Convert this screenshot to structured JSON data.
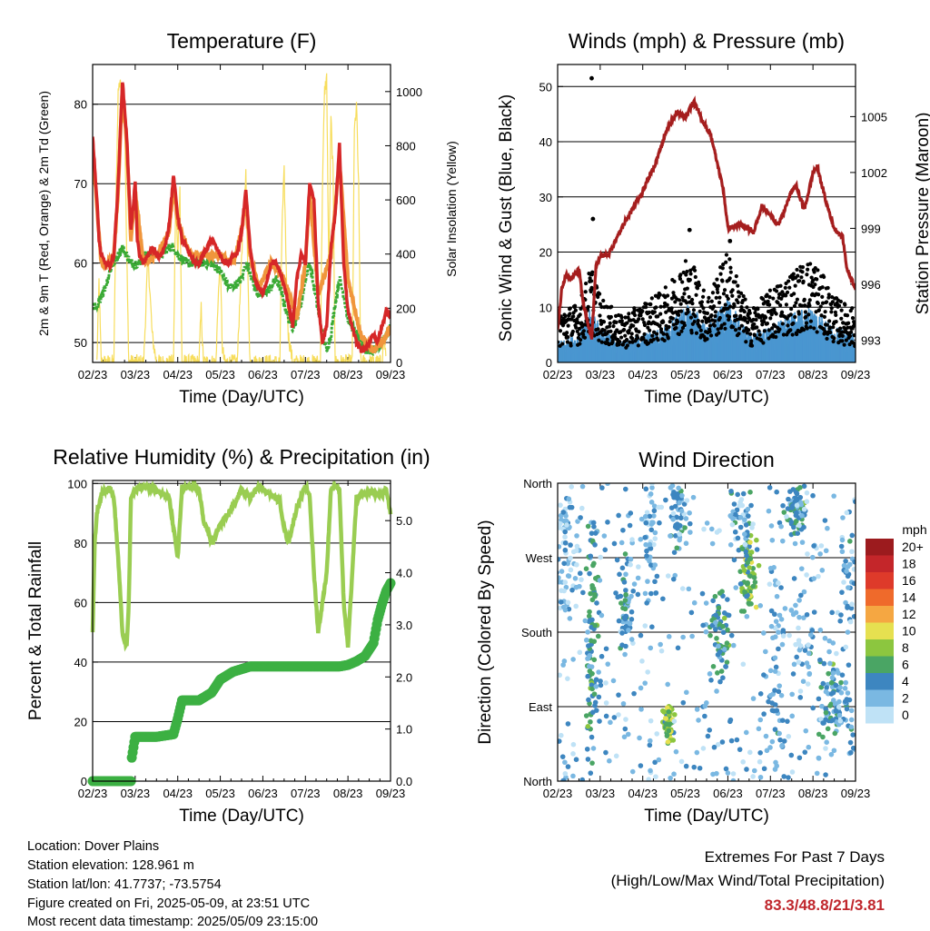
{
  "info": {
    "location": "Location: Dover Plains",
    "elevation": "Station elevation: 128.961 m",
    "latlon": "Station lat/lon: 41.7737; -73.5754",
    "created": "Figure created on Fri, 2025-05-09, at 23:51 UTC",
    "recent": "Most recent data timestamp: 2025/05/09 23:15:00"
  },
  "extremes": {
    "title": "Extremes For Past 7 Days",
    "subtitle": "(High/Low/Max Wind/Total Precipitation)",
    "values": "83.3/48.8/21/3.81",
    "value_color": "#c0272d"
  },
  "colors": {
    "temp2m": "#d62728",
    "temp9m": "#f0963c",
    "dewpoint": "#3aaa35",
    "solar": "#f7dd5c",
    "wind": "#4a96d0",
    "gust": "#000000",
    "pressure": "#a51e1e",
    "rh": "#9acd52",
    "precip": "#3cb043"
  },
  "chart_data": [
    {
      "id": "temperature",
      "type": "line",
      "title": "Temperature (F)",
      "xlabel": "Time (Day/UTC)",
      "ylabel": "2m & 9m T (Red, Orange) & 2m Td (Green)",
      "ylabel_right": "Solar Insolation (Yellow)",
      "xticks": [
        "02/23",
        "03/23",
        "04/23",
        "05/23",
        "06/23",
        "07/23",
        "08/23",
        "09/23"
      ],
      "xlim": [
        0,
        7
      ],
      "ylim": [
        47.5,
        85
      ],
      "yticks": [
        50,
        60,
        70,
        80
      ],
      "ylim_right": [
        0,
        1100
      ],
      "yticks_right": [
        0,
        200,
        400,
        600,
        800,
        1000
      ],
      "grid": true,
      "series": [
        {
          "key": "temp2m",
          "x": [
            0,
            0.05,
            0.1,
            0.15,
            0.2,
            0.3,
            0.4,
            0.5,
            0.6,
            0.7,
            0.8,
            0.9,
            1.0,
            1.05,
            1.1,
            1.2,
            1.3,
            1.4,
            1.5,
            1.6,
            1.7,
            1.8,
            1.9,
            2.0,
            2.1,
            2.2,
            2.3,
            2.4,
            2.5,
            2.6,
            2.7,
            2.8,
            2.9,
            3.0,
            3.1,
            3.2,
            3.3,
            3.4,
            3.5,
            3.6,
            3.7,
            3.8,
            3.9,
            4.0,
            4.1,
            4.2,
            4.3,
            4.4,
            4.5,
            4.6,
            4.7,
            4.8,
            4.9,
            5.0,
            5.1,
            5.2,
            5.3,
            5.4,
            5.5,
            5.6,
            5.7,
            5.8,
            5.9,
            6.0,
            6.1,
            6.2,
            6.3,
            6.4,
            6.5,
            6.6,
            6.7,
            6.8,
            6.9,
            7.0
          ],
          "y": [
            76,
            72,
            68,
            63,
            61,
            60,
            59.5,
            61,
            70,
            83,
            76,
            64,
            70,
            63,
            61,
            60,
            61,
            62,
            61,
            61,
            62,
            65,
            71,
            66,
            63,
            62,
            61,
            60,
            60,
            61,
            62,
            63,
            62,
            61,
            60,
            60,
            61,
            61,
            64,
            69,
            62,
            58,
            57,
            56,
            58,
            60,
            60,
            59,
            57,
            55,
            52,
            58,
            61,
            60,
            70,
            68,
            55,
            50,
            52,
            62,
            66,
            75,
            60,
            54,
            52,
            50,
            49,
            49,
            50,
            51,
            50,
            52,
            54,
            53
          ]
        },
        {
          "key": "temp9m",
          "x": [
            0,
            0.1,
            0.2,
            0.3,
            0.5,
            0.6,
            0.7,
            0.8,
            0.9,
            1.0,
            1.2,
            1.5,
            1.8,
            1.9,
            2.0,
            2.3,
            2.6,
            3.0,
            3.3,
            3.5,
            3.6,
            3.7,
            3.9,
            4.2,
            4.5,
            4.8,
            5.0,
            5.1,
            5.3,
            5.6,
            5.8,
            6.0,
            6.3,
            6.6,
            6.8,
            7.0
          ],
          "y": [
            75,
            67,
            60,
            59.5,
            61,
            69,
            82,
            75,
            63,
            69,
            60,
            61,
            64,
            70,
            65,
            61,
            61,
            61,
            60,
            64,
            68,
            61,
            57,
            60,
            58,
            53,
            60,
            69,
            56,
            61,
            73,
            58,
            51,
            49,
            50,
            52
          ]
        },
        {
          "key": "dewpoint",
          "x": [
            0,
            0.1,
            0.2,
            0.3,
            0.4,
            0.5,
            0.6,
            0.7,
            0.8,
            0.9,
            1.0,
            1.1,
            1.2,
            1.4,
            1.6,
            1.8,
            1.9,
            2.0,
            2.2,
            2.4,
            2.6,
            2.8,
            3.0,
            3.1,
            3.2,
            3.3,
            3.5,
            3.6,
            3.7,
            3.8,
            3.9,
            4.0,
            4.2,
            4.3,
            4.4,
            4.5,
            4.6,
            4.7,
            4.8,
            4.9,
            5.0,
            5.1,
            5.2,
            5.3,
            5.4,
            5.5,
            5.6,
            5.7,
            5.8,
            5.9,
            6.0,
            6.2,
            6.4,
            6.6,
            6.8,
            7.0
          ],
          "y": [
            55,
            54,
            56,
            57,
            59,
            60,
            61,
            62,
            61,
            60,
            60,
            60,
            61,
            61,
            61,
            62,
            62,
            61,
            60,
            60,
            60,
            60,
            59,
            58,
            57,
            57,
            58,
            60,
            59,
            57,
            56,
            56,
            57,
            58,
            57,
            55,
            53,
            52,
            53,
            55,
            58,
            60,
            57,
            54,
            51,
            49,
            51,
            55,
            58,
            56,
            53,
            51,
            49,
            49,
            50,
            52
          ]
        },
        {
          "key": "solar",
          "x": [
            0.1,
            0.15,
            0.2,
            0.5,
            0.55,
            0.6,
            0.65,
            0.7,
            0.75,
            0.8,
            0.85,
            0.9,
            1.2,
            1.3,
            1.4,
            1.5,
            1.9,
            1.95,
            2.0,
            2.05,
            2.1,
            2.5,
            2.55,
            2.6,
            2.9,
            2.95,
            3.0,
            3.05,
            3.1,
            3.4,
            3.5,
            3.55,
            3.6,
            3.65,
            3.7,
            4.4,
            4.45,
            4.5,
            4.55,
            4.6,
            4.7,
            5.35,
            5.4,
            5.45,
            5.5,
            5.55,
            5.6,
            5.65,
            5.7,
            6.1,
            6.15,
            6.2,
            6.25,
            6.3,
            6.8,
            6.85,
            6.9
          ],
          "y": [
            0,
            300,
            0,
            0,
            600,
            1000,
            1050,
            900,
            950,
            400,
            0,
            0,
            0,
            400,
            100,
            0,
            0,
            600,
            400,
            650,
            0,
            0,
            200,
            0,
            0,
            250,
            350,
            50,
            0,
            0,
            400,
            550,
            700,
            300,
            0,
            0,
            500,
            700,
            350,
            100,
            0,
            0,
            650,
            1000,
            1050,
            300,
            900,
            700,
            0,
            0,
            850,
            950,
            650,
            0,
            0,
            100,
            0
          ]
        }
      ]
    },
    {
      "id": "winds",
      "type": "scatter",
      "title": "Winds (mph) & Pressure (mb)",
      "xlabel": "Time (Day/UTC)",
      "ylabel": "Sonic Wind & Gust (Blue, Black)",
      "ylabel_right": "Station Pressure (Maroon)",
      "xticks": [
        "02/23",
        "03/23",
        "04/23",
        "05/23",
        "06/23",
        "07/23",
        "08/23",
        "09/23"
      ],
      "xlim": [
        0,
        7
      ],
      "ylim": [
        0,
        54
      ],
      "yticks": [
        0,
        10,
        20,
        30,
        40,
        50
      ],
      "ylim_right": [
        991.8,
        1007.8
      ],
      "yticks_right": [
        993,
        996,
        999,
        1002,
        1005
      ],
      "grid": true,
      "gust_envelope": {
        "x": [
          0,
          0.5,
          0.8,
          1.0,
          1.5,
          2.0,
          2.5,
          3.0,
          3.2,
          3.5,
          4.0,
          4.5,
          5.0,
          5.5,
          6.0,
          6.5,
          7.0
        ],
        "y": [
          8,
          9,
          15,
          10,
          7,
          9,
          11,
          16,
          15,
          10,
          17,
          8,
          11,
          14,
          16,
          10,
          8
        ]
      },
      "wind_envelope": {
        "x": [
          0,
          0.5,
          0.8,
          1.0,
          1.5,
          2.0,
          2.5,
          3.0,
          3.2,
          3.5,
          4.0,
          4.5,
          5.0,
          5.5,
          6.0,
          6.5,
          7.0
        ],
        "y": [
          3,
          4,
          8,
          5,
          3,
          4,
          5,
          8,
          8,
          5,
          9,
          4,
          5,
          7,
          8,
          5,
          4
        ]
      },
      "gust_outliers": {
        "x": [
          0.8,
          0.83,
          3.1,
          4.05
        ],
        "y": [
          51.5,
          26,
          24,
          22
        ]
      },
      "series": [
        {
          "key": "pressure",
          "x": [
            0,
            0.1,
            0.2,
            0.3,
            0.5,
            0.6,
            0.8,
            0.9,
            1.0,
            1.2,
            1.5,
            2.0,
            2.3,
            2.6,
            2.8,
            3.0,
            3.2,
            3.4,
            3.6,
            3.9,
            4.0,
            4.3,
            4.6,
            4.8,
            5.2,
            5.5,
            5.6,
            5.8,
            6.0,
            6.1,
            6.3,
            6.5,
            6.7,
            6.8,
            7.0
          ],
          "y": [
            993.5,
            995.8,
            996.5,
            996.2,
            996.8,
            995,
            993,
            997,
            997.5,
            997.6,
            999,
            1001,
            1002.5,
            1004.5,
            1005.2,
            1005,
            1005.8,
            1004.8,
            1004,
            1001,
            999,
            999.2,
            998.8,
            1000.2,
            999.2,
            1001,
            1001.3,
            1000,
            1002,
            1002.3,
            1000.5,
            999,
            998.5,
            996.8,
            995.8
          ]
        }
      ]
    },
    {
      "id": "humidity",
      "type": "line",
      "title": "Relative Humidity (%) & Precipitation (in)",
      "xlabel": "Time (Day/UTC)",
      "ylabel": "Percent & Total Rainfall",
      "xticks": [
        "02/23",
        "03/23",
        "04/23",
        "05/23",
        "06/23",
        "07/23",
        "08/23",
        "09/23"
      ],
      "xlim": [
        0,
        7
      ],
      "ylim": [
        0,
        101
      ],
      "yticks": [
        0,
        20,
        40,
        60,
        80,
        100
      ],
      "ylim_right": [
        0,
        5.77
      ],
      "yticks_right": [
        "0.0",
        "1.0",
        "2.0",
        "3.0",
        "4.0",
        "5.0"
      ],
      "grid": true,
      "series": [
        {
          "key": "rh",
          "x": [
            0,
            0.05,
            0.1,
            0.2,
            0.3,
            0.4,
            0.5,
            0.6,
            0.7,
            0.8,
            0.85,
            0.9,
            1.0,
            1.2,
            1.5,
            1.8,
            1.9,
            2.0,
            2.1,
            2.3,
            2.5,
            2.6,
            2.8,
            3.0,
            3.2,
            3.4,
            3.5,
            3.7,
            3.9,
            4.2,
            4.4,
            4.5,
            4.6,
            4.8,
            5.0,
            5.1,
            5.2,
            5.3,
            5.5,
            5.6,
            5.7,
            5.8,
            5.9,
            6.0,
            6.2,
            6.5,
            6.8,
            6.9,
            7.0
          ],
          "y": [
            50,
            80,
            90,
            96,
            98,
            99,
            95,
            75,
            50,
            45,
            60,
            95,
            98,
            99,
            98,
            95,
            85,
            75,
            98,
            99,
            98,
            88,
            80,
            86,
            90,
            95,
            98,
            95,
            99,
            96,
            94,
            85,
            80,
            92,
            99,
            96,
            70,
            50,
            70,
            98,
            99,
            98,
            60,
            45,
            95,
            97,
            96,
            98,
            90
          ]
        },
        {
          "key": "precip",
          "x": [
            0,
            0.5,
            0.9,
            0.92,
            1.0,
            1.5,
            1.9,
            2.0,
            2.1,
            2.5,
            2.8,
            3.0,
            3.3,
            3.7,
            4.0,
            4.5,
            5.0,
            5.3,
            5.5,
            5.8,
            6.0,
            6.2,
            6.4,
            6.6,
            6.7,
            6.8,
            6.9,
            7.0
          ],
          "y": [
            0,
            0,
            0,
            0.45,
            0.85,
            0.85,
            0.9,
            1.2,
            1.55,
            1.55,
            1.7,
            1.95,
            2.1,
            2.2,
            2.2,
            2.2,
            2.2,
            2.2,
            2.2,
            2.2,
            2.23,
            2.3,
            2.4,
            2.65,
            3.1,
            3.4,
            3.65,
            3.8
          ]
        }
      ]
    },
    {
      "id": "direction",
      "type": "scatter",
      "title": "Wind Direction",
      "xlabel": "Time (Day/UTC)",
      "ylabel": "Direction (Colored By Speed)",
      "xticks": [
        "02/23",
        "03/23",
        "04/23",
        "05/23",
        "06/23",
        "07/23",
        "08/23",
        "09/23"
      ],
      "xlim": [
        0,
        7
      ],
      "ylim": [
        0,
        360
      ],
      "yticks": [
        "North",
        "East",
        "South",
        "West",
        "North"
      ],
      "grid": true,
      "colorbar": {
        "title": "mph",
        "labels": [
          "20+",
          "18",
          "16",
          "14",
          "12",
          "10",
          "8",
          "6",
          "4",
          "2",
          "0"
        ],
        "colors": [
          "#9c1b1e",
          "#c4262a",
          "#de3a2a",
          "#ef6a2b",
          "#f5a742",
          "#e6e050",
          "#8cc63f",
          "#4aa564",
          "#3d86c0",
          "#7ab8e2",
          "#bfe2f6"
        ]
      },
      "clusters": [
        {
          "x": 0.25,
          "y": 300,
          "sx": 0.2,
          "sy": 80,
          "s": 2,
          "n": 70
        },
        {
          "x": 0.85,
          "y": 200,
          "sx": 0.12,
          "sy": 120,
          "s": 5,
          "n": 60
        },
        {
          "x": 0.75,
          "y": 110,
          "sx": 0.1,
          "sy": 70,
          "s": 5,
          "n": 30
        },
        {
          "x": 1.6,
          "y": 200,
          "sx": 0.15,
          "sy": 50,
          "s": 4,
          "n": 50
        },
        {
          "x": 2.2,
          "y": 290,
          "sx": 0.1,
          "sy": 60,
          "s": 2,
          "n": 40
        },
        {
          "x": 2.6,
          "y": 70,
          "sx": 0.1,
          "sy": 20,
          "s": 8,
          "n": 60
        },
        {
          "x": 2.85,
          "y": 320,
          "sx": 0.2,
          "sy": 30,
          "s": 3,
          "n": 50
        },
        {
          "x": 3.8,
          "y": 180,
          "sx": 0.2,
          "sy": 50,
          "s": 5,
          "n": 60
        },
        {
          "x": 4.5,
          "y": 250,
          "sx": 0.15,
          "sy": 40,
          "s": 7,
          "n": 70
        },
        {
          "x": 4.3,
          "y": 320,
          "sx": 0.25,
          "sy": 40,
          "s": 3,
          "n": 40
        },
        {
          "x": 5.1,
          "y": 140,
          "sx": 0.25,
          "sy": 120,
          "s": 3,
          "n": 60
        },
        {
          "x": 5.6,
          "y": 330,
          "sx": 0.2,
          "sy": 30,
          "s": 4,
          "n": 60
        },
        {
          "x": 5.8,
          "y": 200,
          "sx": 0.3,
          "sy": 80,
          "s": 2,
          "n": 40
        },
        {
          "x": 6.5,
          "y": 90,
          "sx": 0.3,
          "sy": 40,
          "s": 4,
          "n": 90
        },
        {
          "x": 6.8,
          "y": 250,
          "sx": 0.15,
          "sy": 60,
          "s": 3,
          "n": 30
        }
      ]
    }
  ]
}
